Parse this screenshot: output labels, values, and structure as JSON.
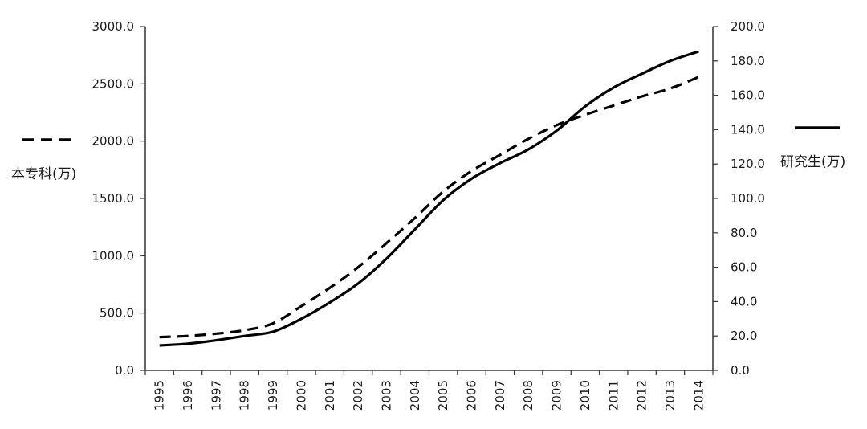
{
  "chart_data": {
    "type": "line",
    "categories": [
      "1995",
      "1996",
      "1997",
      "1998",
      "1999",
      "2000",
      "2001",
      "2002",
      "2003",
      "2004",
      "2005",
      "2006",
      "2007",
      "2008",
      "2009",
      "2010",
      "2011",
      "2012",
      "2013",
      "2014"
    ],
    "series": [
      {
        "name": "本专科(万)",
        "axis": "left",
        "style": "dashed",
        "values": [
          290,
          300,
          320,
          350,
          410,
          560,
          720,
          900,
          1110,
          1330,
          1560,
          1740,
          1880,
          2020,
          2140,
          2230,
          2310,
          2390,
          2460,
          2560
        ]
      },
      {
        "name": "研究生(万)",
        "axis": "right",
        "style": "solid",
        "values": [
          14.5,
          15.5,
          17.5,
          20.0,
          22.5,
          30.0,
          39.5,
          50.5,
          65.0,
          82.0,
          99.0,
          111.5,
          120.5,
          128.5,
          139.5,
          153.5,
          164.5,
          172.5,
          180.0,
          185.5
        ]
      }
    ],
    "left_axis": {
      "ylim": [
        0,
        3000
      ],
      "ticks": [
        "0.0",
        "500.0",
        "1000.0",
        "1500.0",
        "2000.0",
        "2500.0",
        "3000.0"
      ]
    },
    "right_axis": {
      "ylim": [
        0,
        200
      ],
      "ticks": [
        "0.0",
        "20.0",
        "40.0",
        "60.0",
        "80.0",
        "100.0",
        "120.0",
        "140.0",
        "160.0",
        "180.0",
        "200.0"
      ]
    },
    "legend": {
      "left_label": "本专科(万)",
      "right_label": "研究生(万)"
    },
    "grid": false,
    "colors": {
      "line": "#000000",
      "axis": "#333333",
      "text": "#1a1a1a"
    }
  }
}
